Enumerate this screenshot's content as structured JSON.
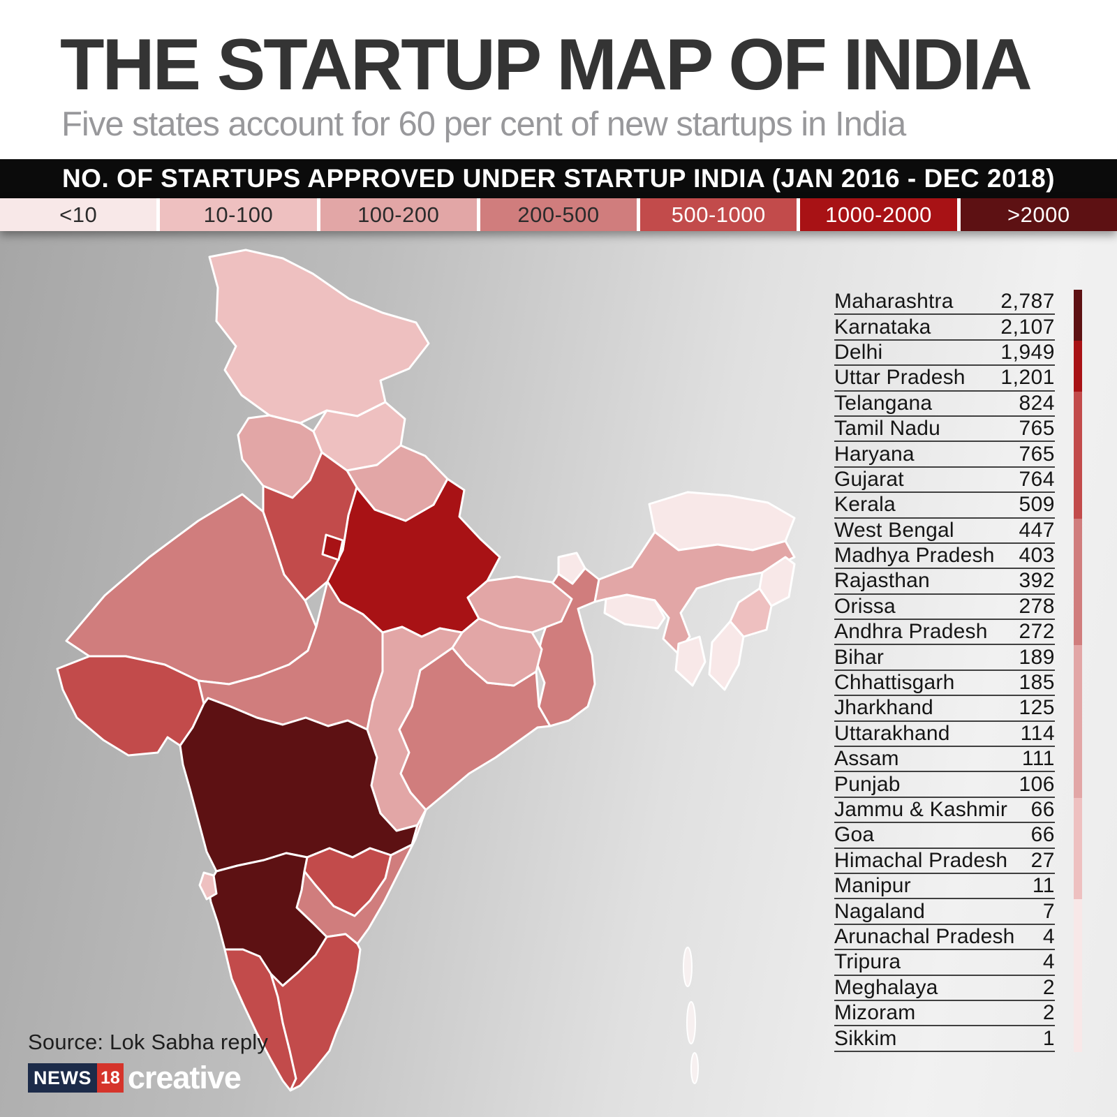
{
  "header": {
    "title": "THE STARTUP MAP OF INDIA",
    "subtitle": "Five states account for 60 per cent of new startups in India"
  },
  "banner": {
    "label": "NO. OF STARTUPS APPROVED UNDER STARTUP INDIA (JAN 2016 - DEC 2018)"
  },
  "legend": {
    "buckets": [
      {
        "label": "<10",
        "color": "#f8e8e8",
        "text_color": "#2b2b2b"
      },
      {
        "label": "10-100",
        "color": "#eec0c0",
        "text_color": "#2b2b2b"
      },
      {
        "label": "100-200",
        "color": "#e2a6a6",
        "text_color": "#2b2b2b"
      },
      {
        "label": "200-500",
        "color": "#d07d7d",
        "text_color": "#2b2b2b"
      },
      {
        "label": "500-1000",
        "color": "#c24b4b",
        "text_color": "#ffffff"
      },
      {
        "label": "1000-2000",
        "color": "#a81215",
        "text_color": "#ffffff"
      },
      {
        "label": ">2000",
        "color": "#5d1113",
        "text_color": "#ffffff"
      }
    ],
    "thresholds": [
      10,
      100,
      200,
      500,
      1000,
      2000
    ]
  },
  "chart_data": {
    "type": "choropleth",
    "title": "THE STARTUP MAP OF INDIA",
    "subtitle": "Five states account for 60 per cent of new startups in India",
    "metric": "NO. OF STARTUPS APPROVED UNDER STARTUP INDIA (JAN 2016 - DEC 2018)",
    "legend_labels": [
      "<10",
      "10-100",
      "100-200",
      "200-500",
      "500-1000",
      "1000-2000",
      ">2000"
    ],
    "legend_position": "top",
    "states": [
      {
        "id": "mh",
        "name": "Maharashtra",
        "value": 2787
      },
      {
        "id": "ka",
        "name": "Karnataka",
        "value": 2107
      },
      {
        "id": "dl",
        "name": "Delhi",
        "value": 1949
      },
      {
        "id": "up",
        "name": "Uttar Pradesh",
        "value": 1201
      },
      {
        "id": "tg",
        "name": "Telangana",
        "value": 824
      },
      {
        "id": "tn",
        "name": "Tamil Nadu",
        "value": 765
      },
      {
        "id": "hr",
        "name": "Haryana",
        "value": 765
      },
      {
        "id": "gj",
        "name": "Gujarat",
        "value": 764
      },
      {
        "id": "kl",
        "name": "Kerala",
        "value": 509
      },
      {
        "id": "wb",
        "name": "West Bengal",
        "value": 447
      },
      {
        "id": "mp",
        "name": "Madhya Pradesh",
        "value": 403
      },
      {
        "id": "rj",
        "name": "Rajasthan",
        "value": 392
      },
      {
        "id": "or",
        "name": "Orissa",
        "value": 278
      },
      {
        "id": "ap",
        "name": "Andhra Pradesh",
        "value": 272
      },
      {
        "id": "bh",
        "name": "Bihar",
        "value": 189
      },
      {
        "id": "cg",
        "name": "Chhattisgarh",
        "value": 185
      },
      {
        "id": "jh",
        "name": "Jharkhand",
        "value": 125
      },
      {
        "id": "uk",
        "name": "Uttarakhand",
        "value": 114
      },
      {
        "id": "as",
        "name": "Assam",
        "value": 111
      },
      {
        "id": "pb",
        "name": "Punjab",
        "value": 106
      },
      {
        "id": "jk",
        "name": "Jammu & Kashmir",
        "value": 66
      },
      {
        "id": "goa",
        "name": "Goa",
        "value": 66
      },
      {
        "id": "hp",
        "name": "Himachal Pradesh",
        "value": 27
      },
      {
        "id": "mn",
        "name": "Manipur",
        "value": 11
      },
      {
        "id": "ng",
        "name": "Nagaland",
        "value": 7
      },
      {
        "id": "ar",
        "name": "Arunachal Pradesh",
        "value": 4
      },
      {
        "id": "tr",
        "name": "Tripura",
        "value": 4
      },
      {
        "id": "ml",
        "name": "Meghalaya",
        "value": 2
      },
      {
        "id": "mz",
        "name": "Mizoram",
        "value": 2
      },
      {
        "id": "sk",
        "name": "Sikkim",
        "value": 1
      }
    ]
  },
  "footer": {
    "source": "Source: Lok Sabha reply",
    "logo_news": "NEWS",
    "logo_18": "18",
    "logo_creative": "creative"
  }
}
